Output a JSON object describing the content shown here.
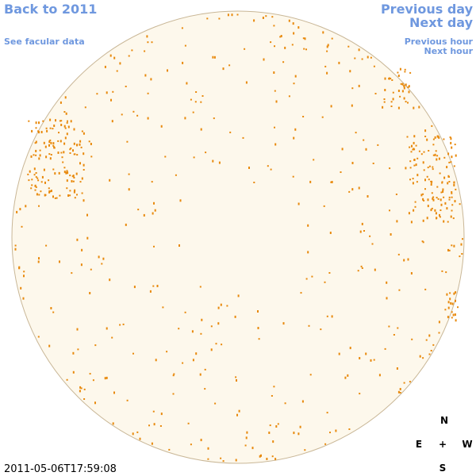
{
  "header": {
    "back_link": "Back to 2011",
    "facular_link": "See facular data",
    "previous_day": "Previous day",
    "next_day": "Next day",
    "previous_hour": "Previous hour",
    "next_hour": "Next hour"
  },
  "compass": {
    "north": "N",
    "east": "E",
    "center": "+",
    "west": "W",
    "south": "S"
  },
  "timestamp": "2011-05-06T17:59:08"
}
